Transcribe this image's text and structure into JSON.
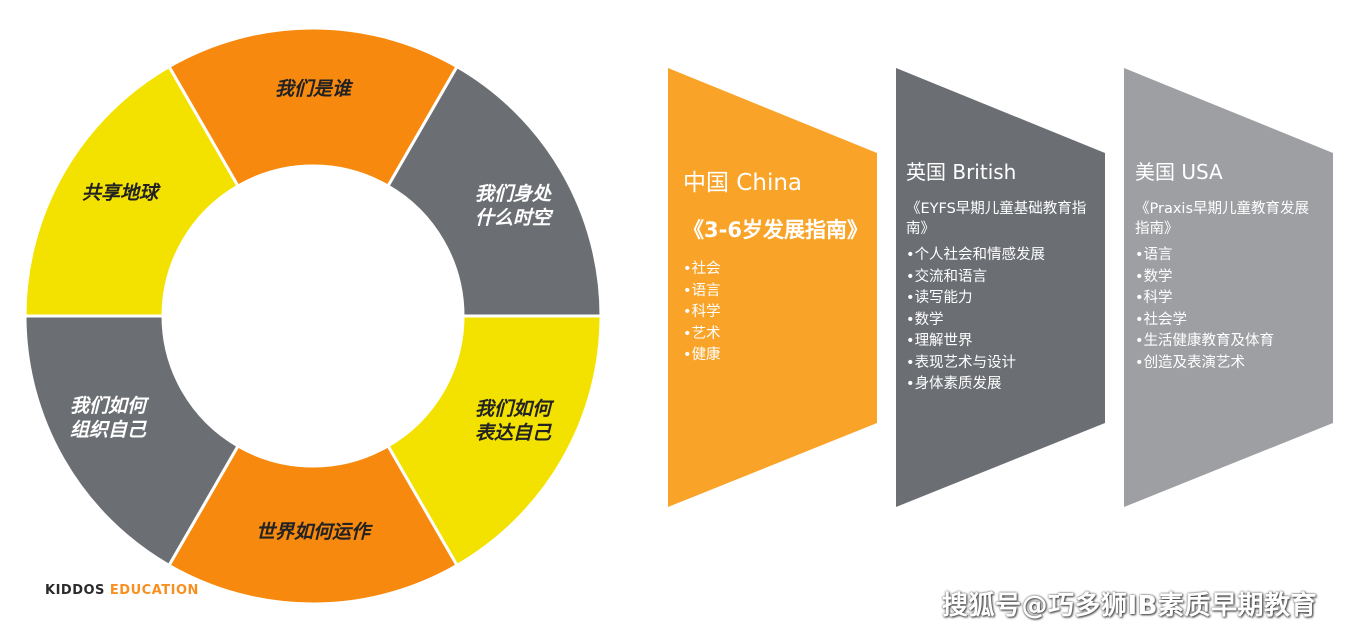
{
  "wheel": {
    "segments": [
      {
        "label_lines": [
          "我们是谁"
        ],
        "color": "#f7890f"
      },
      {
        "label_lines": [
          "我们身处",
          "什么时空"
        ],
        "color": "#6b6e73"
      },
      {
        "label_lines": [
          "我们如何",
          "表达自己"
        ],
        "color": "#f3e200"
      },
      {
        "label_lines": [
          "世界如何运作"
        ],
        "color": "#f7890f"
      },
      {
        "label_lines": [
          "我们如何",
          "组织自己"
        ],
        "color": "#6b6e73"
      },
      {
        "label_lines": [
          "共享地球"
        ],
        "color": "#f3e200"
      }
    ]
  },
  "panels": {
    "china": {
      "title": "中国 China",
      "guide": "《3-6岁发展指南》",
      "items": [
        "社会",
        "语言",
        "科学",
        "艺术",
        "健康"
      ],
      "color": "#f9a428"
    },
    "uk": {
      "title": "英国 British",
      "guide": "《EYFS早期儿童基础教育指南》",
      "items": [
        "个人社会和情感发展",
        "交流和语言",
        "读写能力",
        "数学",
        "理解世界",
        "表现艺术与设计",
        "身体素质发展"
      ],
      "color": "#6b6e73"
    },
    "us": {
      "title": "美国 USA",
      "guide": "《Praxis早期儿童教育发展指南》",
      "items": [
        "语言",
        "数学",
        "科学",
        "社会学",
        "生活健康教育及体育",
        "创造及表演艺术"
      ],
      "color": "#9d9fa2"
    }
  },
  "brand": {
    "part1": "KIDDOS",
    "part2": "EDUCATION"
  },
  "watermark": "搜狐号@巧多狮IB素质早期教育"
}
